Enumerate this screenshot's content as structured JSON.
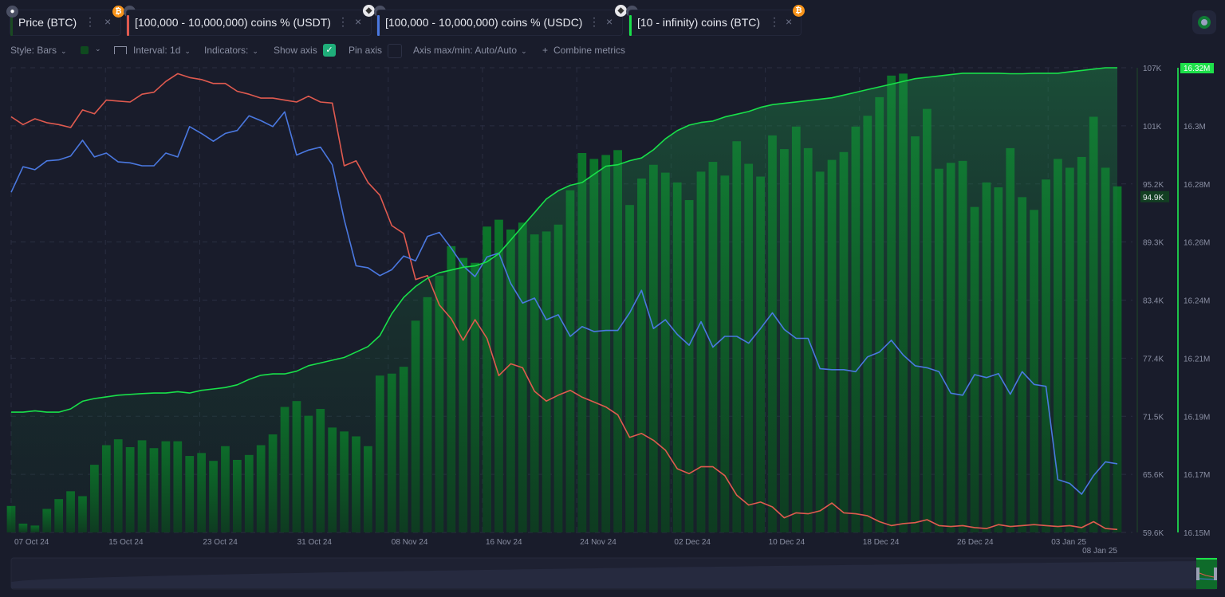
{
  "tabs": [
    {
      "label": "Price (BTC)",
      "color": "#1a4a22",
      "asset_icon": "bitcoin-icon",
      "lock_icon": "lock-icon"
    },
    {
      "label": "[100,000 - 10,000,000) coins % (USDT)",
      "color": "#e05a4f",
      "asset_icon": "ethereum-icon",
      "lock_icon": "lock-icon"
    },
    {
      "label": "[100,000 - 10,000,000) coins % (USDC)",
      "color": "#4a78e0",
      "asset_icon": "ethereum-icon",
      "lock_icon": "lock-icon"
    },
    {
      "label": "[10 - infinity) coins (BTC)",
      "color": "#19e04a",
      "asset_icon": "bitcoin-icon",
      "lock_icon": "lock-icon"
    }
  ],
  "tab_menu_glyph": "⋮",
  "tab_close_glyph": "×",
  "badge_glyphs": {
    "bitcoin": "₿",
    "lock": "🔒",
    "ethereum": "◆"
  },
  "toolbar": {
    "style_label": "Style: Bars",
    "color_swatch": "#0f4a1f",
    "interval_label": "Interval: 1d",
    "indicators_label": "Indicators:",
    "show_axis_label": "Show axis",
    "show_axis_checked": true,
    "pin_axis_label": "Pin axis",
    "pin_axis_checked": false,
    "axis_maxmin_label": "Axis max/min: Auto/Auto",
    "combine_label": "Combine metrics",
    "combine_glyph": "+",
    "chevron_glyph": "⌄"
  },
  "colors": {
    "background": "#191c2b",
    "price_bar": "#0d6a26",
    "usdt_line": "#e05a4f",
    "usdc_line": "#4a78e0",
    "supply_line": "#19e04a",
    "grid": "#2a2e42",
    "axis_text": "#8a8fa3"
  },
  "chart_data": {
    "type": "bar+line",
    "title": "",
    "x_tick_labels": [
      "07 Oct 24",
      "15 Oct 24",
      "23 Oct 24",
      "31 Oct 24",
      "08 Nov 24",
      "16 Nov 24",
      "24 Nov 24",
      "02 Dec 24",
      "10 Dec 24",
      "18 Dec 24",
      "26 Dec 24",
      "03 Jan 25",
      "08 Jan 25"
    ],
    "left_axis": {
      "label": "Price (BTC)",
      "ticks": [
        "107K",
        "101K",
        "95.2K",
        "89.3K",
        "83.4K",
        "77.4K",
        "71.5K",
        "65.6K",
        "59.6K"
      ],
      "range": [
        59600,
        107000
      ],
      "current_value_label": "94.9K"
    },
    "right_axis": {
      "label": "[10 - infinity) coins (BTC)",
      "ticks": [
        "16.32M",
        "16.3M",
        "16.28M",
        "16.26M",
        "16.24M",
        "16.21M",
        "16.19M",
        "16.17M",
        "16.15M"
      ],
      "range": [
        16150000,
        16320000
      ],
      "current_value_label": "16.32M"
    },
    "grid": true,
    "start_date": "07 Oct 24",
    "days": 94,
    "series": [
      {
        "name": "Price (BTC)",
        "type": "bar",
        "axis": "left",
        "values": [
          62300,
          60500,
          60300,
          62000,
          63000,
          63800,
          63300,
          66500,
          68500,
          69100,
          68300,
          69000,
          68200,
          68900,
          68900,
          67400,
          67700,
          66900,
          68400,
          67000,
          67500,
          68500,
          69600,
          72400,
          73000,
          71500,
          72200,
          70300,
          69900,
          69400,
          68400,
          75600,
          75800,
          76500,
          81200,
          83600,
          85800,
          88800,
          87600,
          87100,
          90800,
          91500,
          90500,
          91200,
          90000,
          90300,
          91000,
          94500,
          98300,
          97700,
          98100,
          98600,
          93000,
          95700,
          97100,
          96300,
          95300,
          93500,
          96400,
          97400,
          96000,
          99500,
          97200,
          95900,
          100100,
          98700,
          101000,
          98800,
          96400,
          97600,
          98400,
          101000,
          102100,
          104000,
          106200,
          106400,
          100000,
          102800,
          96700,
          97300,
          97500,
          92800,
          95300,
          94800,
          98800,
          93800,
          92500,
          95600,
          97700,
          96800,
          97900,
          102000,
          96800,
          94900
        ]
      },
      {
        "name": "[100,000 - 10,000,000) coins % (USDT)",
        "type": "line",
        "axis": "left",
        "values": [
          102000,
          101200,
          101800,
          101400,
          101200,
          100900,
          102700,
          102300,
          103700,
          103600,
          103500,
          104300,
          104500,
          105600,
          106400,
          106000,
          105800,
          105400,
          105400,
          104600,
          104300,
          103900,
          103900,
          103700,
          103500,
          104100,
          103500,
          103400,
          97000,
          97500,
          95300,
          94000,
          90900,
          90100,
          85400,
          85800,
          82800,
          81400,
          79200,
          81300,
          79400,
          75600,
          76800,
          76400,
          74000,
          73000,
          73600,
          74100,
          73400,
          72900,
          72400,
          71600,
          69300,
          69700,
          69000,
          68000,
          66100,
          65600,
          66300,
          66300,
          65400,
          63400,
          62400,
          62700,
          62200,
          61100,
          61600,
          61500,
          61800,
          62600,
          61600,
          61500,
          61300,
          60700,
          60300,
          60500,
          60600,
          60900,
          60300,
          60200,
          60300,
          60100,
          60000,
          60400,
          60200,
          60300,
          60400,
          60300,
          60200,
          60300,
          60100,
          60700,
          60000,
          59900
        ]
      },
      {
        "name": "[100,000 - 10,000,000) coins % (USDC)",
        "type": "line",
        "axis": "left",
        "values": [
          94300,
          96900,
          96600,
          97500,
          97600,
          98000,
          99600,
          97900,
          98300,
          97400,
          97300,
          97000,
          97000,
          98300,
          97900,
          101000,
          100300,
          99500,
          100300,
          100600,
          102100,
          101600,
          101000,
          102500,
          98100,
          98600,
          98900,
          97100,
          91500,
          86800,
          86600,
          85800,
          86400,
          87800,
          87300,
          89800,
          90200,
          88600,
          86800,
          85700,
          87700,
          88100,
          85000,
          83000,
          83500,
          81300,
          81800,
          79600,
          80600,
          80100,
          80200,
          80200,
          82000,
          84300,
          80400,
          81300,
          79800,
          78700,
          81100,
          78500,
          79600,
          79600,
          78900,
          80400,
          82000,
          80300,
          79400,
          79400,
          76300,
          76200,
          76200,
          76000,
          77500,
          78000,
          79200,
          77700,
          76600,
          76400,
          76000,
          73800,
          73600,
          75700,
          75400,
          75800,
          73700,
          76000,
          74700,
          74500,
          65000,
          64600,
          63500,
          65400,
          66800,
          66600
        ]
      },
      {
        "name": "[10 - infinity) coins (BTC)",
        "type": "line",
        "axis": "right",
        "values": [
          16194000,
          16194000,
          16194500,
          16194000,
          16194000,
          16195200,
          16198000,
          16199000,
          16199600,
          16200200,
          16200500,
          16200800,
          16201000,
          16201000,
          16201500,
          16201000,
          16202000,
          16202500,
          16203000,
          16204000,
          16206000,
          16207500,
          16208000,
          16208000,
          16209000,
          16211000,
          16212000,
          16213000,
          16214000,
          16216000,
          16218000,
          16222000,
          16230000,
          16236000,
          16240000,
          16243000,
          16245000,
          16246000,
          16247000,
          16247500,
          16249000,
          16252000,
          16257000,
          16262000,
          16267000,
          16272000,
          16275000,
          16277000,
          16278000,
          16281000,
          16284000,
          16284500,
          16286000,
          16287000,
          16290000,
          16294000,
          16297000,
          16299000,
          16300000,
          16300500,
          16302000,
          16303000,
          16304000,
          16305500,
          16306500,
          16307000,
          16307500,
          16308000,
          16308500,
          16309000,
          16310000,
          16311000,
          16312000,
          16313000,
          16314000,
          16315000,
          16316000,
          16316500,
          16317000,
          16317500,
          16318000,
          16318000,
          16318000,
          16318000,
          16317800,
          16317800,
          16318000,
          16318000,
          16318000,
          16318500,
          16319000,
          16319500,
          16320000,
          16320000
        ]
      }
    ]
  },
  "navigator": {
    "label": "range navigator"
  }
}
